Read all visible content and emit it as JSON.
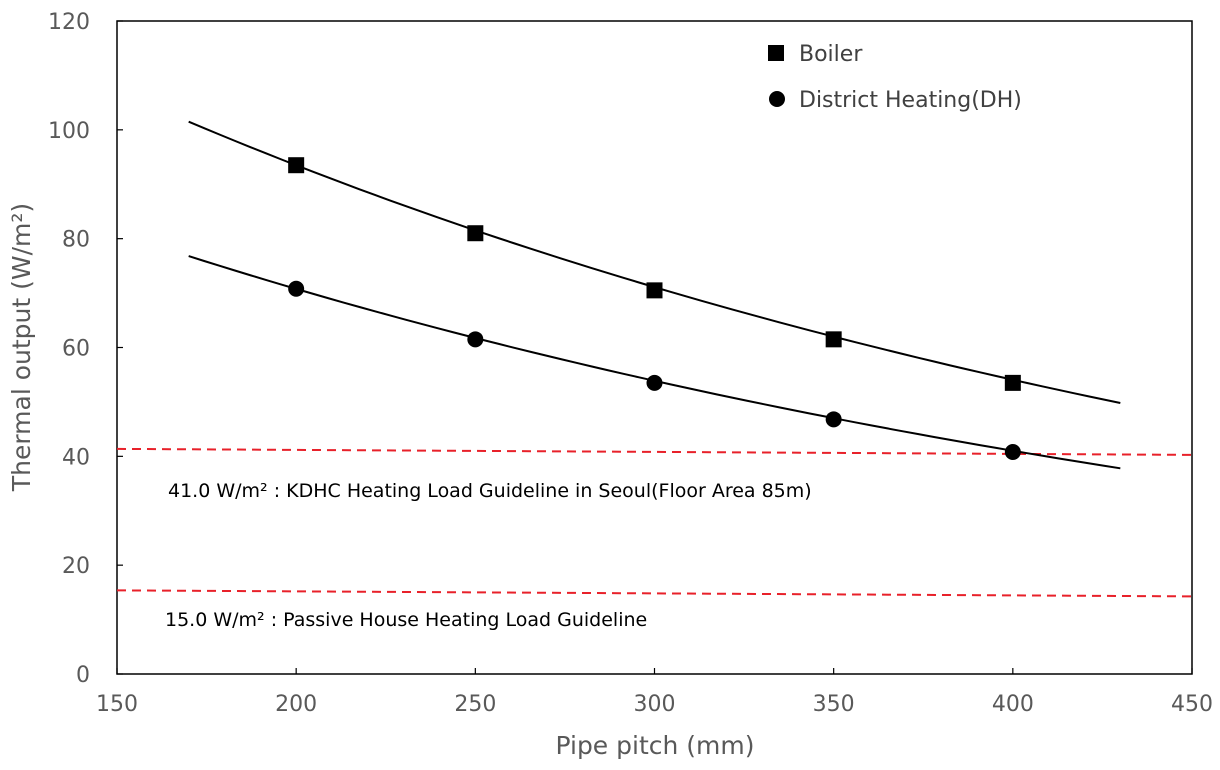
{
  "chart_data": {
    "type": "scatter",
    "title": "",
    "xlabel": "Pipe pitch (mm)",
    "ylabel": "Thermal output (W/m²)",
    "xlim": [
      150,
      450
    ],
    "ylim": [
      0,
      120
    ],
    "x_ticks": [
      150,
      200,
      250,
      300,
      350,
      400,
      450
    ],
    "y_ticks": [
      0,
      20,
      40,
      60,
      80,
      100,
      120
    ],
    "grid": false,
    "legend": "top-right",
    "series": [
      {
        "name": "Boiler",
        "marker": "square",
        "x": [
          200,
          250,
          300,
          350,
          400
        ],
        "values": [
          93.5,
          81.0,
          70.5,
          61.5,
          53.5
        ],
        "trend": {
          "x_range": [
            170,
            430
          ],
          "start": 101.5,
          "end": 49.8
        }
      },
      {
        "name": "District Heating(DH)",
        "marker": "circle",
        "x": [
          200,
          250,
          300,
          350,
          400
        ],
        "values": [
          70.8,
          61.5,
          53.5,
          46.8,
          40.8
        ],
        "trend": {
          "x_range": [
            170,
            430
          ],
          "start": 76.8,
          "end": 37.8
        }
      }
    ],
    "reference_lines": [
      {
        "y": 41.0,
        "color": "#e8212a",
        "label": "41.0 W/m² : KDHC Heating Load Guideline in Seoul(Floor Area 85m)"
      },
      {
        "y": 15.0,
        "color": "#e8212a",
        "label": "15.0 W/m² : Passive House Heating Load Guideline"
      }
    ]
  }
}
